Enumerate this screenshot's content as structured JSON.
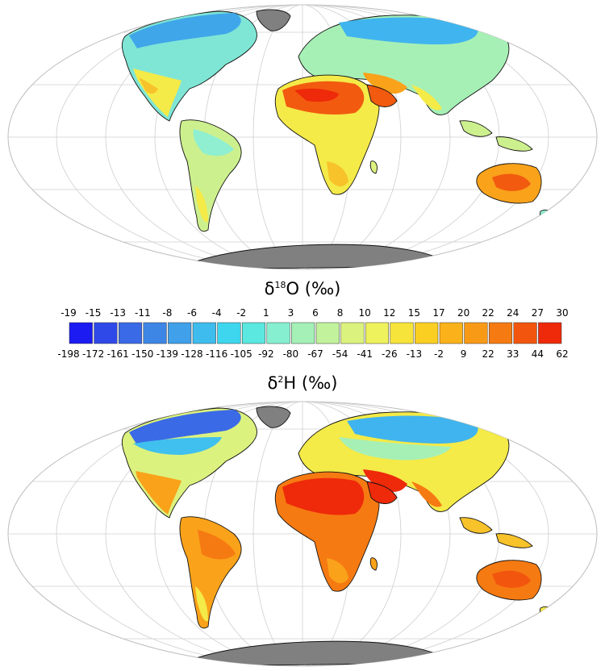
{
  "titles": {
    "top": {
      "symbol": "δ",
      "mass": "18",
      "element": "O",
      "unit": "(‰)"
    },
    "bottom": {
      "symbol": "δ",
      "mass": "2",
      "element": "H",
      "unit": "(‰)"
    }
  },
  "legend": {
    "o18_labels": [
      "-19",
      "-15",
      "-13",
      "-11",
      "-8",
      "-6",
      "-4",
      "-2",
      "1",
      "3",
      "6",
      "8",
      "10",
      "12",
      "15",
      "17",
      "20",
      "22",
      "24",
      "27",
      "30"
    ],
    "h2_labels": [
      "-198",
      "-172",
      "-161",
      "-150",
      "-139",
      "-128",
      "-116",
      "-105",
      "-92",
      "-80",
      "-67",
      "-54",
      "-41",
      "-26",
      "-13",
      "-2",
      "9",
      "22",
      "33",
      "44",
      "62"
    ],
    "colors": [
      "#1b1bf2",
      "#2f49e8",
      "#3a6ae6",
      "#3e86e6",
      "#40a0ea",
      "#3ebcee",
      "#3ed6ee",
      "#5ae8e0",
      "#86efd0",
      "#a4f0b6",
      "#c2f29c",
      "#dcf27e",
      "#eef25c",
      "#f7e43a",
      "#fbcf22",
      "#fbb21a",
      "#f99a16",
      "#f67a12",
      "#f2560e",
      "#ee2a0a"
    ]
  },
  "colors": {
    "ocean": "#ffffff",
    "antarctica": "#808080",
    "graticule": "#c8c8c8",
    "coast": "#111111"
  }
}
